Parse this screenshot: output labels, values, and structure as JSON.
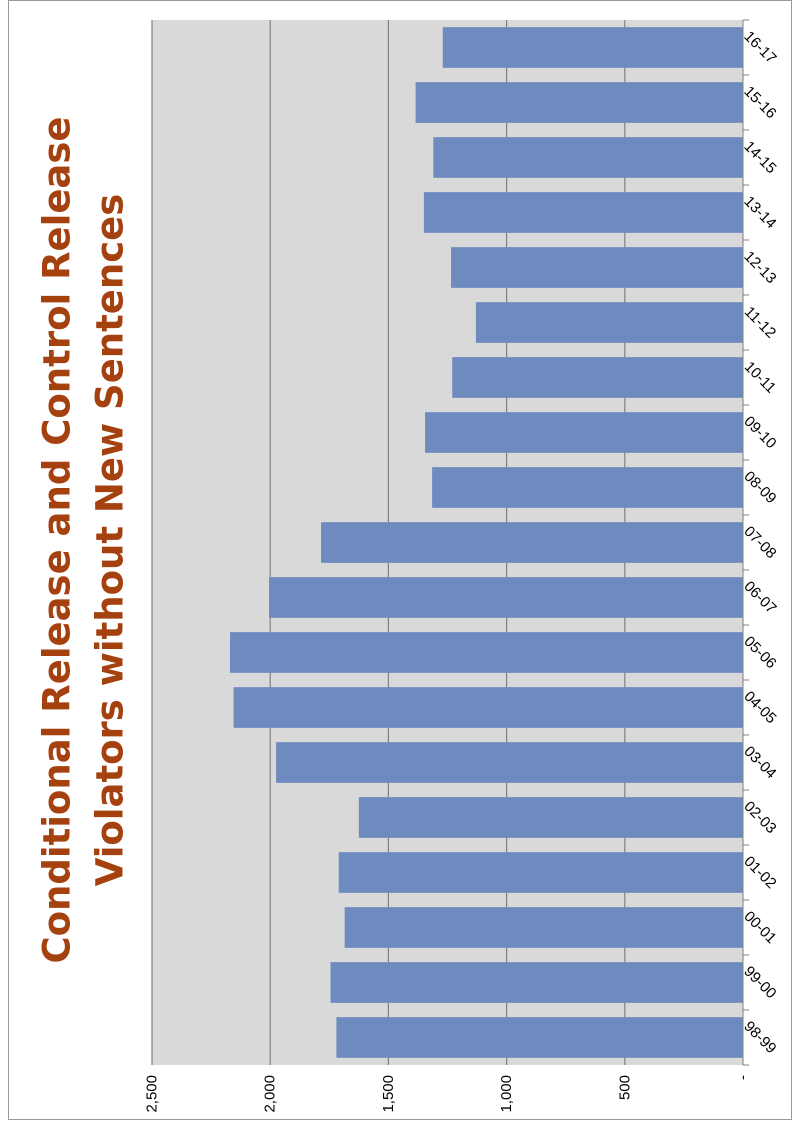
{
  "chart_data": {
    "type": "bar",
    "orientation": "vertical-rotated-90",
    "title": "Conditional Release and Control Release Violators without New Sentences",
    "title_lines": [
      "Conditional Release and Control Release",
      "Violators without New Sentences"
    ],
    "categories": [
      "98-99",
      "99-00",
      "00-01",
      "01-02",
      "02-03",
      "03-04",
      "04-05",
      "05-06",
      "06-07",
      "07-08",
      "08-09",
      "09-10",
      "10-11",
      "11-12",
      "12-13",
      "13-14",
      "14-15",
      "15-16",
      "16-17"
    ],
    "values": [
      1720,
      1745,
      1685,
      1710,
      1625,
      1975,
      2155,
      2170,
      2005,
      1785,
      1315,
      1345,
      1230,
      1130,
      1235,
      1350,
      1310,
      1385,
      1270
    ],
    "ylim": [
      0,
      2500
    ],
    "y_ticks": [
      0,
      500,
      1000,
      1500,
      2000,
      2500
    ],
    "y_tick_labels": [
      "-",
      "500",
      "1,000",
      "1,500",
      "2,000",
      "2,500"
    ],
    "xlabel": "",
    "ylabel": "",
    "grid": true,
    "legend": "none",
    "colors": {
      "bar": "#6e8bc0",
      "plot_background": "#d9d9d9",
      "gridline": "#808080",
      "title": "#a5400f"
    }
  }
}
